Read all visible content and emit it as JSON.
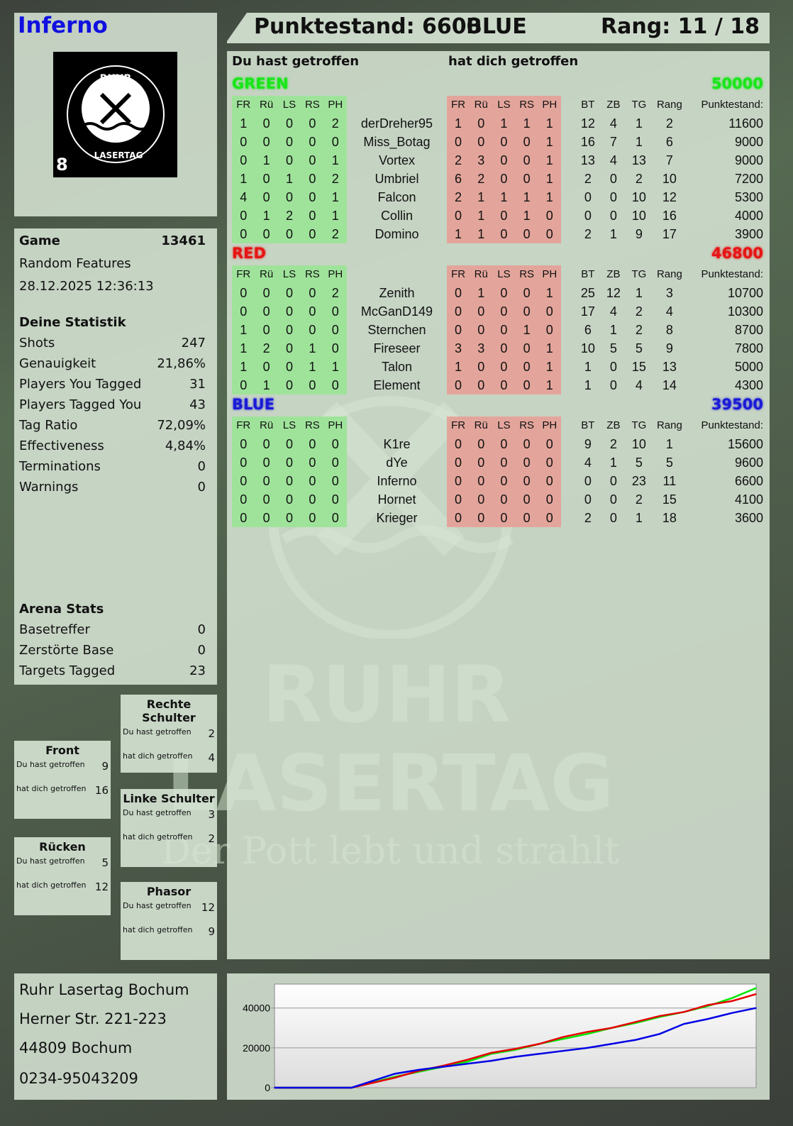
{
  "player": {
    "name": "Inferno",
    "badge_number": "8",
    "logo_text": "RUHR LASERTAG"
  },
  "header": {
    "score_label": "Punktestand: 6600",
    "team": "BLUE",
    "rank": "Rang: 11 / 18"
  },
  "game": {
    "label": "Game",
    "id": "13461",
    "mode": "Random Features",
    "datetime": "28.12.2025 12:36:13"
  },
  "stats": {
    "title": "Deine Statistik",
    "items": [
      {
        "label": "Shots",
        "value": "247"
      },
      {
        "label": "Genauigkeit",
        "value": "21,86%"
      },
      {
        "label": "Players You Tagged",
        "value": "31"
      },
      {
        "label": "Players Tagged You",
        "value": "43"
      },
      {
        "label": "Tag Ratio",
        "value": "72,09%"
      },
      {
        "label": "Effectiveness",
        "value": "4,84%"
      },
      {
        "label": "Terminations",
        "value": "0"
      },
      {
        "label": "Warnings",
        "value": "0"
      }
    ]
  },
  "arena": {
    "title": "Arena Stats",
    "items": [
      {
        "label": "Basetreffer",
        "value": "0"
      },
      {
        "label": "Zerstörte Base",
        "value": "0"
      },
      {
        "label": "Targets Tagged",
        "value": "23"
      }
    ]
  },
  "zones": {
    "hit_label": "Du hast getroffen",
    "got_label": "hat dich getroffen",
    "items": [
      {
        "name": "Rechte Schulter",
        "hit": "2",
        "got": "4"
      },
      {
        "name": "Front",
        "hit": "9",
        "got": "16"
      },
      {
        "name": "Linke Schulter",
        "hit": "3",
        "got": "2"
      },
      {
        "name": "Rücken",
        "hit": "5",
        "got": "12"
      },
      {
        "name": "Phasor",
        "hit": "12",
        "got": "9"
      }
    ]
  },
  "address": {
    "lines": [
      "Ruhr Lasertag Bochum",
      "Herner Str. 221-223",
      "44809 Bochum",
      "0234-95043209"
    ]
  },
  "table": {
    "you_hit": "Du hast getroffen",
    "hit_you": "hat dich getroffen",
    "columns": [
      "FR",
      "Rü",
      "LS",
      "RS",
      "PH",
      "",
      "FR",
      "Rü",
      "LS",
      "RS",
      "PH",
      "",
      "BT",
      "ZB",
      "TG",
      "Rang",
      "Punktestand:"
    ],
    "teams": [
      {
        "name": "GREEN",
        "total": "50000",
        "color": "#19e619",
        "players": [
          [
            "1",
            "0",
            "0",
            "0",
            "2",
            "derDreher95",
            "1",
            "0",
            "1",
            "1",
            "1",
            "12",
            "4",
            "1",
            "2",
            "11600"
          ],
          [
            "0",
            "0",
            "0",
            "0",
            "0",
            "Miss_Botag",
            "0",
            "0",
            "0",
            "0",
            "1",
            "16",
            "7",
            "1",
            "6",
            "9000"
          ],
          [
            "0",
            "1",
            "0",
            "0",
            "1",
            "Vortex",
            "2",
            "3",
            "0",
            "0",
            "1",
            "13",
            "4",
            "13",
            "7",
            "9000"
          ],
          [
            "1",
            "0",
            "1",
            "0",
            "2",
            "Umbriel",
            "6",
            "2",
            "0",
            "0",
            "1",
            "2",
            "0",
            "2",
            "10",
            "7200"
          ],
          [
            "4",
            "0",
            "0",
            "0",
            "1",
            "Falcon",
            "2",
            "1",
            "1",
            "1",
            "1",
            "0",
            "0",
            "10",
            "12",
            "5300"
          ],
          [
            "0",
            "1",
            "2",
            "0",
            "1",
            "Collin",
            "0",
            "1",
            "0",
            "1",
            "0",
            "0",
            "0",
            "10",
            "16",
            "4000"
          ],
          [
            "0",
            "0",
            "0",
            "0",
            "2",
            "Domino",
            "1",
            "1",
            "0",
            "0",
            "0",
            "2",
            "1",
            "9",
            "17",
            "3900"
          ]
        ]
      },
      {
        "name": "RED",
        "total": "46800",
        "color": "#e61414",
        "players": [
          [
            "0",
            "0",
            "0",
            "0",
            "2",
            "Zenith",
            "0",
            "1",
            "0",
            "0",
            "1",
            "25",
            "12",
            "1",
            "3",
            "10700"
          ],
          [
            "0",
            "0",
            "0",
            "0",
            "0",
            "McGanD149",
            "0",
            "0",
            "0",
            "0",
            "0",
            "17",
            "4",
            "2",
            "4",
            "10300"
          ],
          [
            "1",
            "0",
            "0",
            "0",
            "0",
            "Sternchen",
            "0",
            "0",
            "0",
            "1",
            "0",
            "6",
            "1",
            "2",
            "8",
            "8700"
          ],
          [
            "1",
            "2",
            "0",
            "1",
            "0",
            "Fireseer",
            "3",
            "3",
            "0",
            "0",
            "1",
            "10",
            "5",
            "5",
            "9",
            "7800"
          ],
          [
            "1",
            "0",
            "0",
            "1",
            "1",
            "Talon",
            "1",
            "0",
            "0",
            "0",
            "1",
            "1",
            "0",
            "15",
            "13",
            "5000"
          ],
          [
            "0",
            "1",
            "0",
            "0",
            "0",
            "Element",
            "0",
            "0",
            "0",
            "0",
            "1",
            "1",
            "0",
            "4",
            "14",
            "4300"
          ]
        ]
      },
      {
        "name": "BLUE",
        "total": "39500",
        "color": "#1a1ad6",
        "players": [
          [
            "0",
            "0",
            "0",
            "0",
            "0",
            "K1re",
            "0",
            "0",
            "0",
            "0",
            "0",
            "9",
            "2",
            "10",
            "1",
            "15600"
          ],
          [
            "0",
            "0",
            "0",
            "0",
            "0",
            "dYe",
            "0",
            "0",
            "0",
            "0",
            "0",
            "4",
            "1",
            "5",
            "5",
            "9600"
          ],
          [
            "0",
            "0",
            "0",
            "0",
            "0",
            "Inferno",
            "0",
            "0",
            "0",
            "0",
            "0",
            "0",
            "0",
            "23",
            "11",
            "6600"
          ],
          [
            "0",
            "0",
            "0",
            "0",
            "0",
            "Hornet",
            "0",
            "0",
            "0",
            "0",
            "0",
            "0",
            "0",
            "2",
            "15",
            "4100"
          ],
          [
            "0",
            "0",
            "0",
            "0",
            "0",
            "Krieger",
            "0",
            "0",
            "0",
            "0",
            "0",
            "2",
            "0",
            "1",
            "18",
            "3600"
          ]
        ]
      }
    ]
  },
  "watermark": {
    "line1": "RUHR",
    "line2": "LASERTAG",
    "line3": "Der Pott lebt und strahlt"
  },
  "chart_data": {
    "type": "line",
    "ylim": [
      0,
      52000
    ],
    "yticks": [
      "0",
      "20000",
      "40000"
    ],
    "ytick_values": [
      0,
      20000,
      40000
    ],
    "grid": true,
    "x": [
      0,
      16,
      25,
      30,
      35,
      40,
      45,
      50,
      55,
      60,
      65,
      70,
      75,
      80,
      85,
      90,
      95,
      100
    ],
    "series": [
      {
        "color": "#00e600",
        "values": [
          0,
          0,
          5500,
          8000,
          10500,
          13000,
          17000,
          19000,
          22000,
          24500,
          27000,
          30000,
          32500,
          35500,
          38000,
          41000,
          45000,
          50000
        ]
      },
      {
        "color": "#e60000",
        "values": [
          0,
          0,
          5000,
          8500,
          11000,
          14000,
          17500,
          19500,
          22000,
          25500,
          28000,
          30000,
          33000,
          36000,
          38000,
          41500,
          43500,
          47000
        ]
      },
      {
        "color": "#0000e6",
        "values": [
          0,
          0,
          7000,
          9000,
          10500,
          12000,
          13500,
          15500,
          17000,
          18500,
          20000,
          22000,
          24000,
          27000,
          32000,
          34500,
          37500,
          40000
        ]
      }
    ]
  }
}
